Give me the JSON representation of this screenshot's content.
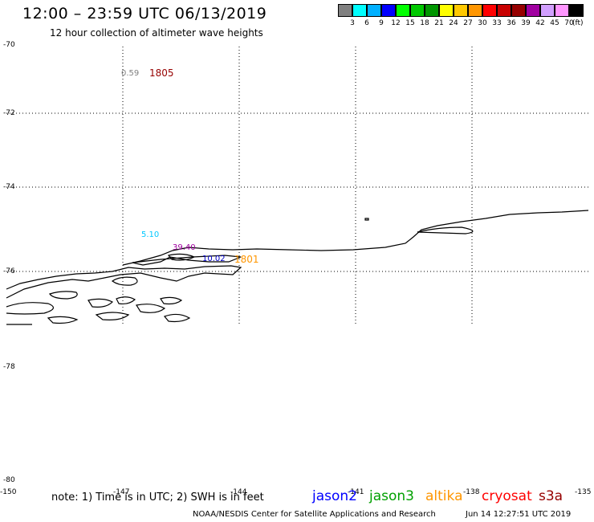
{
  "title": "12:00 – 23:59 UTC 06/13/2019",
  "subtitle": "12 hour collection of altimeter wave heights",
  "colorbar": {
    "unit": "(ft)",
    "colors": [
      "#808080",
      "#00ffff",
      "#00b0ff",
      "#0000ff",
      "#00ff00",
      "#00c800",
      "#009600",
      "#ffff00",
      "#ffc800",
      "#ff9600",
      "#ff0000",
      "#c80000",
      "#960000",
      "#a000a0",
      "#d2a0ff",
      "#ff96ff",
      "#000000"
    ],
    "labels": [
      "3",
      "6",
      "9",
      "12",
      "15",
      "18",
      "21",
      "24",
      "27",
      "30",
      "33",
      "36",
      "39",
      "42",
      "45",
      "70"
    ]
  },
  "lat_labels": [
    "-70",
    "-72",
    "-74",
    "-76",
    "-78",
    "-80"
  ],
  "lon_labels": [
    "-150",
    "-147",
    "-144",
    "-141",
    "-138",
    "-135"
  ],
  "observations": [
    {
      "text": "0.59",
      "color": "#808080"
    },
    {
      "text": "1805",
      "color": "#960000"
    },
    {
      "text": "5.10",
      "color": "#00c8ff"
    },
    {
      "text": "39.40",
      "color": "#a000a0"
    },
    {
      "text": "10.02",
      "color": "#0000c8"
    },
    {
      "text": "1801",
      "color": "#ff9600"
    }
  ],
  "note": "note: 1) Time is in UTC; 2) SWH is in feet",
  "satellites": [
    {
      "name": "jason2",
      "color": "#0000ff"
    },
    {
      "name": "jason3",
      "color": "#00a000"
    },
    {
      "name": "altika",
      "color": "#ff9600"
    },
    {
      "name": "cryosat",
      "color": "#ff0000"
    },
    {
      "name": "s3a",
      "color": "#960000"
    }
  ],
  "credit": "NOAA/NESDIS Center for Satellite Applications and Research",
  "timestamp": "Jun 14 12:27:51 UTC 2019"
}
